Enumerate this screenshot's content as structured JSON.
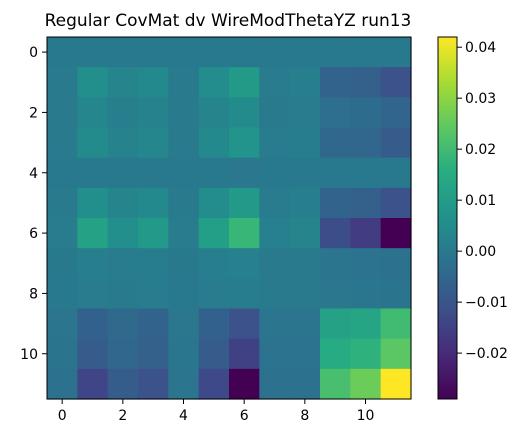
{
  "chart_data": {
    "type": "heatmap",
    "title": "Regular CovMat dv WireModThetaYZ run13",
    "xlabel": "",
    "ylabel": "",
    "colormap": "viridis",
    "x_ticks": [
      "0",
      "2",
      "4",
      "6",
      "8",
      "10"
    ],
    "y_ticks": [
      "0",
      "2",
      "4",
      "6",
      "8",
      "10"
    ],
    "x_range": [
      -0.5,
      11.5
    ],
    "y_range": [
      11.5,
      -0.5
    ],
    "color_range": [
      -0.029,
      0.042
    ],
    "colorbar_ticks": [
      "0.04",
      "0.03",
      "0.02",
      "0.01",
      "0.00",
      "−0.01",
      "−0.02"
    ],
    "colorbar_tick_values": [
      0.04,
      0.03,
      0.02,
      0.01,
      0.0,
      -0.01,
      -0.02
    ],
    "grid": false,
    "matrix": [
      [
        0.0,
        0.0,
        0.0,
        0.0,
        0.0,
        0.0,
        0.0,
        0.0,
        0.0,
        0.0,
        0.0,
        0.0
      ],
      [
        0.0005,
        0.006,
        0.003,
        0.0045,
        0.0005,
        0.0055,
        0.0095,
        0.001,
        0.0015,
        -0.006,
        -0.007,
        -0.011
      ],
      [
        0.0003,
        0.0035,
        0.0015,
        0.0025,
        0.0003,
        0.003,
        0.005,
        0.0005,
        0.0008,
        -0.003,
        -0.0035,
        -0.0055
      ],
      [
        0.0004,
        0.005,
        0.0025,
        0.0035,
        0.0004,
        0.0045,
        0.0075,
        0.0008,
        0.0012,
        -0.0045,
        -0.005,
        -0.008
      ],
      [
        0.0,
        0.0,
        0.0,
        0.0,
        0.0,
        0.0,
        -0.0005,
        0.0,
        0.0,
        0.0,
        0.0,
        0.0
      ],
      [
        0.0005,
        0.006,
        0.003,
        0.0045,
        0.0005,
        0.0055,
        0.009,
        0.001,
        0.0015,
        -0.006,
        -0.007,
        -0.011
      ],
      [
        0.0008,
        0.012,
        0.006,
        0.009,
        0.0008,
        0.011,
        0.0185,
        0.002,
        0.003,
        -0.012,
        -0.016,
        -0.029
      ],
      [
        0.0002,
        0.0015,
        0.0008,
        0.0012,
        0.0002,
        0.0015,
        0.002,
        0.0005,
        0.0005,
        -0.001,
        -0.0015,
        -0.002
      ],
      [
        0.0001,
        0.001,
        0.0005,
        0.0008,
        0.0001,
        0.0008,
        0.0012,
        0.0003,
        0.0003,
        -0.0005,
        -0.0008,
        -0.0012
      ],
      [
        -0.001,
        -0.0065,
        -0.004,
        -0.006,
        -0.0005,
        -0.0065,
        -0.011,
        -0.001,
        -0.001,
        0.012,
        0.013,
        0.02
      ],
      [
        -0.0012,
        -0.008,
        -0.005,
        -0.007,
        -0.0008,
        -0.008,
        -0.015,
        -0.0015,
        -0.0015,
        0.015,
        0.017,
        0.024
      ],
      [
        -0.002,
        -0.014,
        -0.008,
        -0.011,
        -0.001,
        -0.013,
        -0.029,
        -0.002,
        -0.002,
        0.021,
        0.026,
        0.042
      ]
    ]
  }
}
